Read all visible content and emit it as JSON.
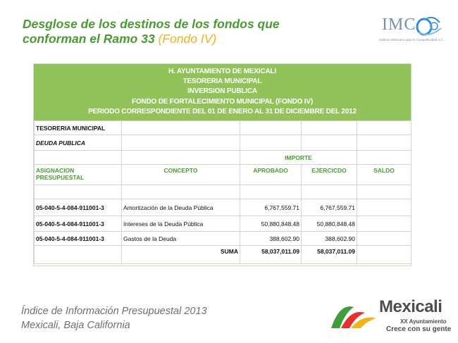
{
  "title": {
    "line1": "Desglose de los destinos de los fondos que",
    "line2_main": "conforman el Ramo 33 ",
    "line2_highlight": "(Fondo IV)"
  },
  "imco_logo": {
    "letters": "IMC",
    "tagline": "Instituto Mexicano para la Competitividad A.C."
  },
  "report": {
    "header_lines": [
      "H. AYUNTAMIENTO DE MEXICALI",
      "TESORERIA MUNICIPAL",
      "INVERSION PUBLICA",
      "FONDO DE FORTALECIMIENTO MUNICIPAL (FONDO IV)",
      "PERIODO CORRESPONDIENTE DEL 01 DE ENERO AL 31 DE DICIEMBRE DEL 2012"
    ],
    "section_label": "TESORERIA MUNICIPAL",
    "subsection_label": "DEUDA PUBLICA",
    "importe_label": "IMPORTE",
    "columns": {
      "asignacion": "ASIGNACION PRESUPUESTAL",
      "concepto": "CONCEPTO",
      "aprobado": "APROBADO",
      "ejercido": "EJERCICDO",
      "saldo": "SALDO"
    },
    "rows": [
      {
        "code": "05-040-5-4-084-911001-3",
        "concept": "Amortización de la Deuda Pública",
        "aprobado": "6,767,559.71",
        "ejercido": "6,767,559.71",
        "saldo": ""
      },
      {
        "code": "05-040-5-4-084-911001-3",
        "concept": "Intereses de la Deuda Pública",
        "aprobado": "50,880,848.48",
        "ejercido": "50,880,848.48",
        "saldo": ""
      },
      {
        "code": "05-040-5-4-084-911001-3",
        "concept": "Gastos de la Deuda",
        "aprobado": "388,602.90",
        "ejercido": "388,602.90",
        "saldo": ""
      }
    ],
    "total": {
      "label": "SUMA",
      "aprobado": "58,037,011.09",
      "ejercido": "58,037,011.09",
      "saldo": ""
    }
  },
  "footer": {
    "line1": "Índice de Información Presupuestal 2013",
    "line2": "Mexicali, Baja California"
  },
  "mexicali_logo": {
    "name": "Mexicali",
    "subtitle": "XX Ayuntamiento",
    "slogan": "Crece con su gente"
  },
  "colors": {
    "title_green": "#4a9a33",
    "highlight_yellow": "#f2b21a",
    "header_green": "#92c35a",
    "grid_border": "#cfd8c4",
    "footer_gray": "#6f6f6f"
  }
}
